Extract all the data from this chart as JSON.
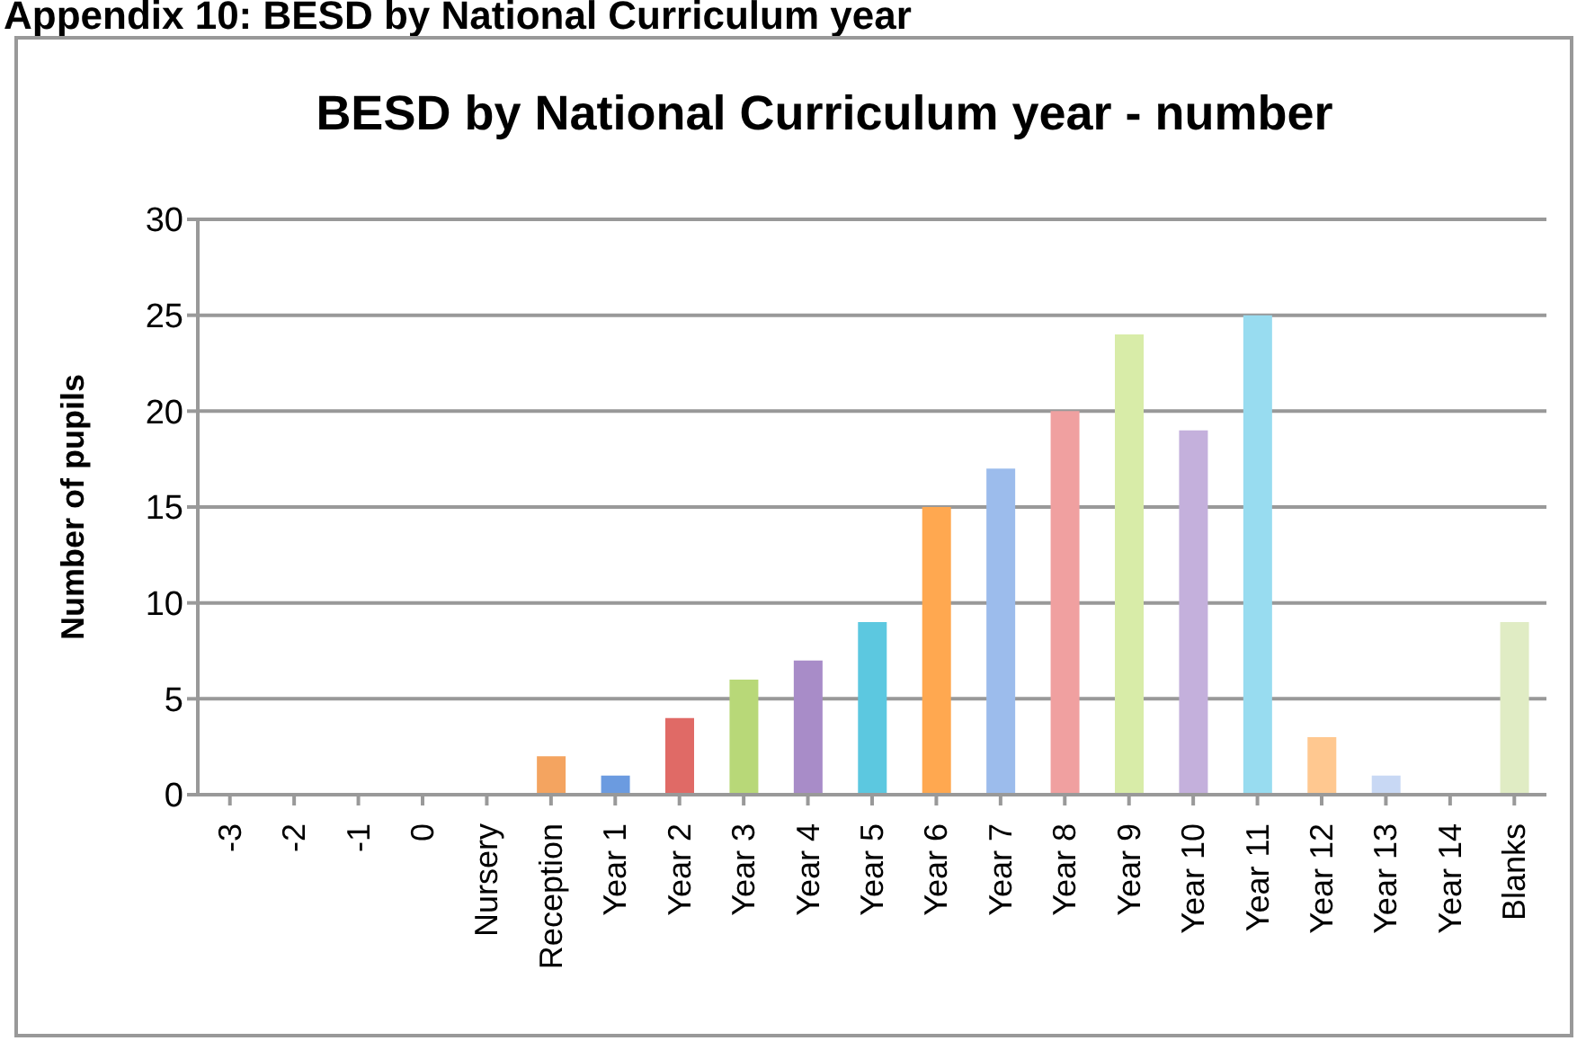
{
  "chart_data": {
    "type": "bar",
    "title": "BESD by National Curriculum year - number",
    "ylabel": "Number of pupils",
    "annotations": [
      "Appendix 10: BESD by National Curriculum year"
    ],
    "categories": [
      "-3",
      "-2",
      "-1",
      "0",
      "Nursery",
      "Reception",
      "Year 1",
      "Year 2",
      "Year 3",
      "Year 4",
      "Year 5",
      "Year 6",
      "Year 7",
      "Year 8",
      "Year 9",
      "Year 10",
      "Year 11",
      "Year 12",
      "Year 13",
      "Year 14",
      "Blanks"
    ],
    "values": [
      0,
      0,
      0,
      0,
      0,
      2,
      1,
      4,
      6,
      7,
      9,
      15,
      17,
      20,
      24,
      19,
      25,
      3,
      1,
      0,
      9
    ],
    "colors": [
      "#5b8fd6",
      "#d9534f",
      "#a8c860",
      "#9b7dc0",
      "#4bc0d9",
      "#f4a460",
      "#6b9be0",
      "#e06a66",
      "#b8d878",
      "#a88cc8",
      "#5cc8e0",
      "#ffa850",
      "#9cbcec",
      "#f0a0a0",
      "#d8eca8",
      "#c4b0dc",
      "#98dcf0",
      "#ffc890",
      "#c8d8f4",
      "#f4a460",
      "#e0ecc4"
    ],
    "ylim": [
      0,
      30
    ],
    "yticks": [
      0,
      5,
      10,
      15,
      20,
      25,
      30
    ],
    "grid": "y",
    "legend": false
  }
}
